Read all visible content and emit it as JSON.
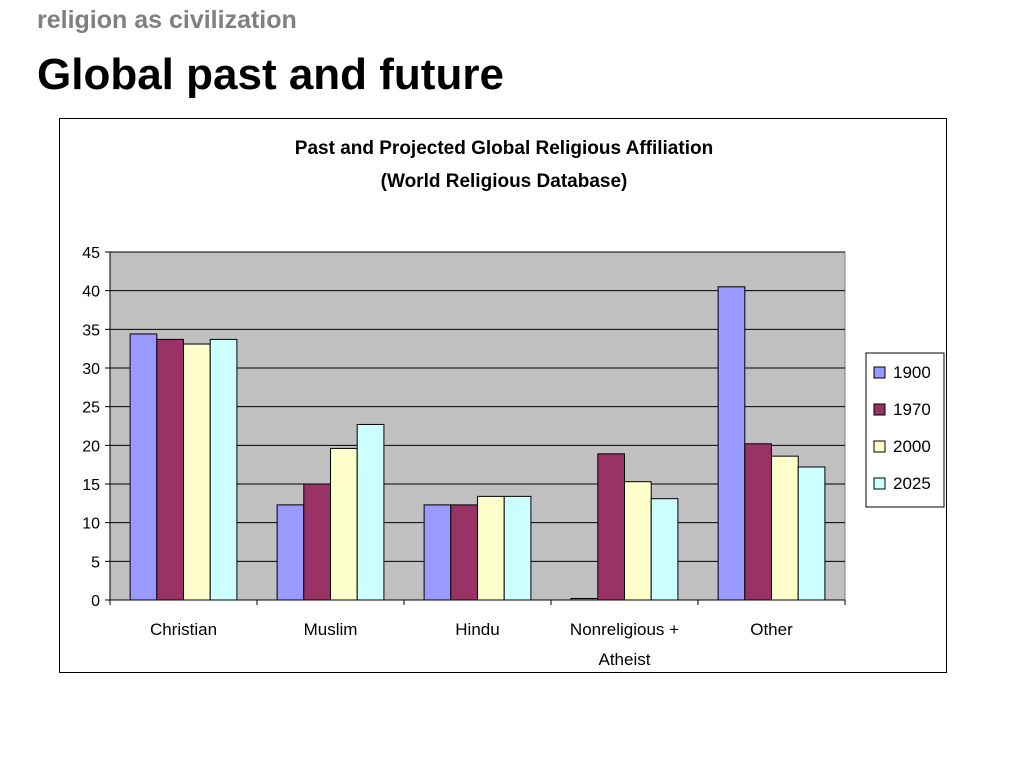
{
  "slide": {
    "subtitle": "religion as civilization",
    "title": "Global past and future"
  },
  "chart_data": {
    "type": "bar",
    "title": "Past and Projected Global Religious Affiliation",
    "subtitle": "(World Religious Database)",
    "xlabel": "",
    "ylabel": "",
    "categories": [
      "Christian",
      "Muslim",
      "Hindu",
      "Nonreligious + Atheist",
      "Other"
    ],
    "category_label_lines": [
      [
        "Christian"
      ],
      [
        "Muslim"
      ],
      [
        "Hindu"
      ],
      [
        "Nonreligious +",
        "Atheist"
      ],
      [
        "Other"
      ]
    ],
    "y_ticks": [
      0,
      5,
      10,
      15,
      20,
      25,
      30,
      35,
      40,
      45
    ],
    "ylim": [
      0,
      45
    ],
    "grid": true,
    "legend_position": "right",
    "plot_background": "#c0c0c0",
    "series": [
      {
        "name": "1900",
        "color": "#9999ff",
        "values": [
          34.4,
          12.3,
          12.3,
          0.2,
          40.5
        ]
      },
      {
        "name": "1970",
        "color": "#993366",
        "values": [
          33.7,
          15.0,
          12.3,
          18.9,
          20.2
        ]
      },
      {
        "name": "2000",
        "color": "#ffffcc",
        "values": [
          33.1,
          19.6,
          13.4,
          15.3,
          18.6
        ]
      },
      {
        "name": "2025",
        "color": "#ccffff",
        "values": [
          33.7,
          22.7,
          13.4,
          13.1,
          17.2
        ]
      }
    ]
  }
}
